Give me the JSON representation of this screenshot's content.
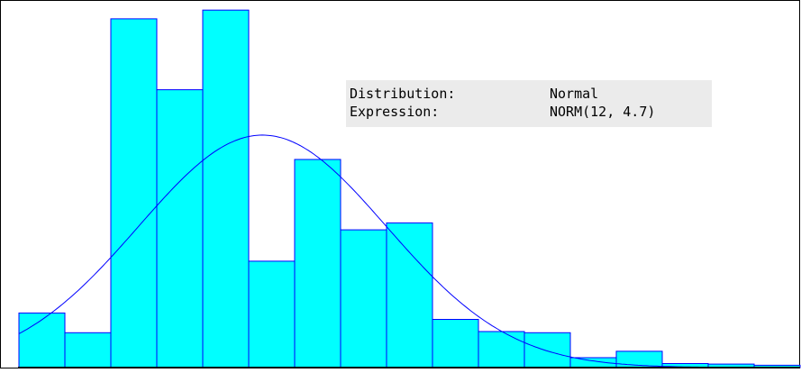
{
  "chart_data": {
    "type": "bar",
    "subtype": "histogram-with-fitted-curve",
    "values": [
      9.4,
      6.0,
      60.0,
      47.8,
      61.5,
      18.3,
      35.8,
      23.7,
      24.9,
      8.3,
      6.2,
      6.0,
      1.7,
      2.8,
      0.7,
      0.6,
      0.4
    ],
    "ylim": [
      0,
      62
    ],
    "fitted_curve": {
      "distribution": "Normal",
      "expression": "NORM(12, 4.7)",
      "peak": 40,
      "mean_bin": 5.3,
      "sd_bins": 2.7
    },
    "colors": {
      "bar_fill": "#00ffff",
      "bar_stroke": "#0000ff",
      "curve": "#0000ff"
    },
    "grid": false,
    "legend": "none"
  },
  "info": {
    "distribution_label": "Distribution:",
    "distribution_value": "Normal",
    "expression_label": "Expression:",
    "expression_value": "NORM(12, 4.7)"
  }
}
